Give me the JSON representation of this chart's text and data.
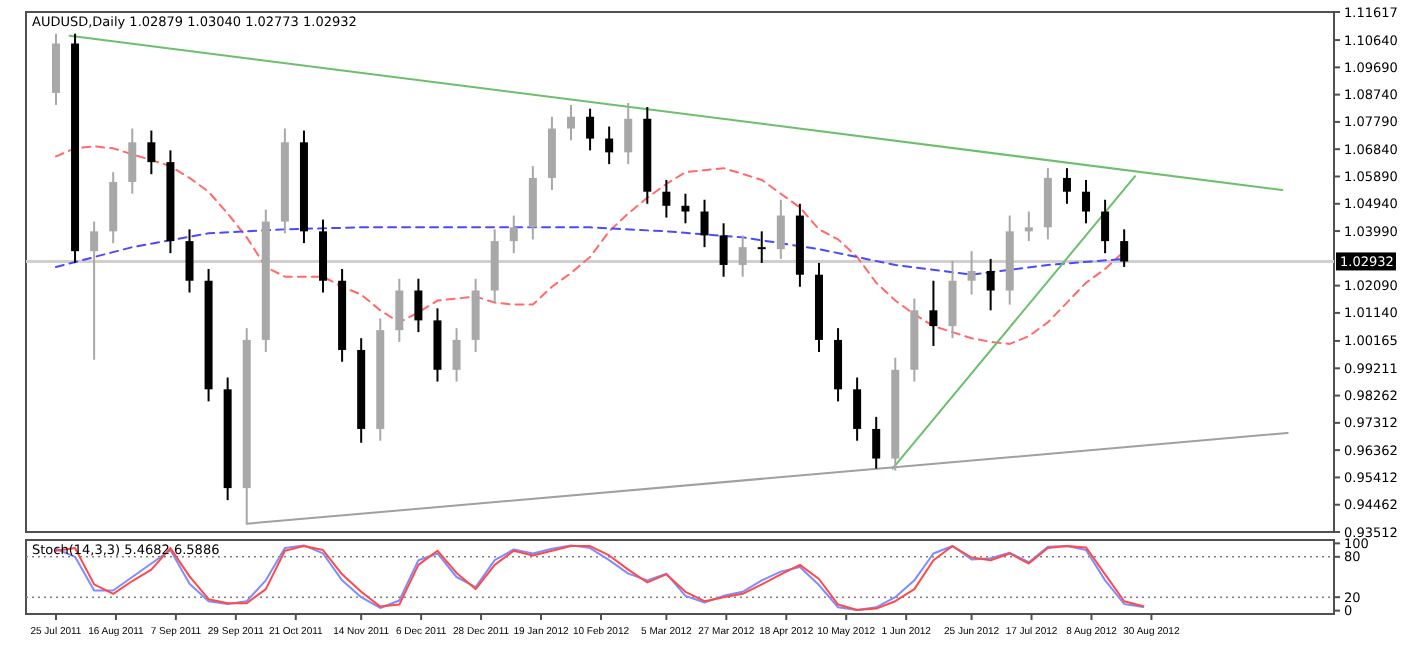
{
  "chart_data": [
    {
      "type": "candlestick",
      "title": "AUDUSD,Daily 1.02879 1.03040 1.02773 1.02932",
      "tick_labels": "y",
      "xlim": [
        "2011-07-14",
        "2012-11-05"
      ],
      "ylim": [
        0.93512,
        1.11617
      ],
      "yticks": [
        0.93512,
        0.94462,
        0.95412,
        0.96362,
        0.97312,
        0.98262,
        0.99211,
        1.00165,
        {
          "value": 1.0114,
          "label": "1.01140"
        },
        {
          "value": 1.0209,
          "label": "1.02090"
        },
        {
          "value": 1.0399,
          "label": "1.03990"
        },
        {
          "value": 1.0494,
          "label": "1.04940"
        },
        {
          "value": 1.0589,
          "label": "1.05890"
        },
        {
          "value": 1.0684,
          "label": "1.06840"
        },
        {
          "value": 1.0779,
          "label": "1.07790"
        },
        {
          "value": 1.0874,
          "label": "1.08740"
        },
        {
          "value": 1.0969,
          "label": "1.09690"
        },
        {
          "value": 1.1064,
          "label": "1.10640"
        },
        1.11617
      ],
      "ref_lines": [
        {
          "axis": "y",
          "value": 1.02932,
          "label": "1.02932",
          "color": "#d0d0d0"
        }
      ],
      "x": [
        "2011-07-25",
        "2011-08-01",
        "2011-08-08",
        "2011-08-15",
        "2011-08-22",
        "2011-08-29",
        "2011-09-05",
        "2011-09-12",
        "2011-09-19",
        "2011-09-26",
        "2011-10-03",
        "2011-10-10",
        "2011-10-17",
        "2011-10-24",
        "2011-10-31",
        "2011-11-07",
        "2011-11-14",
        "2011-11-21",
        "2011-11-28",
        "2011-12-05",
        "2011-12-12",
        "2011-12-19",
        "2011-12-26",
        "2012-01-02",
        "2012-01-09",
        "2012-01-16",
        "2012-01-23",
        "2012-01-30",
        "2012-02-06",
        "2012-02-13",
        "2012-02-20",
        "2012-02-27",
        "2012-03-05",
        "2012-03-12",
        "2012-03-19",
        "2012-03-26",
        "2012-04-02",
        "2012-04-09",
        "2012-04-16",
        "2012-04-23",
        "2012-04-30",
        "2012-05-07",
        "2012-05-14",
        "2012-05-21",
        "2012-05-28",
        "2012-06-04",
        "2012-06-11",
        "2012-06-18",
        "2012-06-25",
        "2012-07-02",
        "2012-07-09",
        "2012-07-16",
        "2012-07-23",
        "2012-07-30",
        "2012-08-06",
        "2012-08-13",
        "2012-08-20"
      ],
      "ohlc": [
        [
          1.088,
          1.1086,
          1.0838,
          1.1052
        ],
        [
          1.1052,
          1.1086,
          1.0288,
          1.0329
        ],
        [
          1.0329,
          1.0432,
          0.9951,
          1.0398
        ],
        [
          1.0398,
          1.0604,
          1.0357,
          1.057
        ],
        [
          1.057,
          1.0756,
          1.0529,
          1.0708
        ],
        [
          1.0708,
          1.0749,
          1.0597,
          1.0639
        ],
        [
          1.0639,
          1.068,
          1.0322,
          1.0364
        ],
        [
          1.0364,
          1.0405,
          1.0185,
          1.0226
        ],
        [
          1.0226,
          1.0267,
          0.9806,
          0.9848
        ],
        [
          0.9848,
          0.9889,
          0.9462,
          0.9504
        ],
        [
          0.9504,
          1.0061,
          0.938,
          1.002
        ],
        [
          1.002,
          1.0474,
          0.9978,
          1.0432
        ],
        [
          1.0432,
          1.0756,
          1.0391,
          1.0708
        ],
        [
          1.0708,
          1.0749,
          1.0357,
          1.0398
        ],
        [
          1.0398,
          1.0439,
          1.0185,
          1.0226
        ],
        [
          1.0226,
          1.0267,
          0.9944,
          0.9985
        ],
        [
          0.9985,
          1.0026,
          0.9662,
          0.971
        ],
        [
          0.971,
          1.0095,
          0.9669,
          1.0054
        ],
        [
          1.0054,
          1.0233,
          1.0013,
          1.0192
        ],
        [
          1.0192,
          1.0233,
          1.0047,
          1.0088
        ],
        [
          1.0088,
          1.013,
          0.9875,
          0.9916
        ],
        [
          0.9916,
          1.0061,
          0.9875,
          1.002
        ],
        [
          1.002,
          1.0233,
          0.9978,
          1.0192
        ],
        [
          1.0192,
          1.0405,
          1.015,
          1.0364
        ],
        [
          1.0364,
          1.0453,
          1.0322,
          1.0412
        ],
        [
          1.0412,
          1.0625,
          1.037,
          1.0584
        ],
        [
          1.0584,
          1.0797,
          1.0542,
          1.0756
        ],
        [
          1.0756,
          1.0838,
          1.0715,
          1.0797
        ],
        [
          1.0797,
          1.0825,
          1.068,
          1.0721
        ],
        [
          1.0721,
          1.0763,
          1.0632,
          1.0673
        ],
        [
          1.0673,
          1.0845,
          1.0632,
          1.079
        ],
        [
          1.079,
          1.0831,
          1.0494,
          1.0536
        ],
        [
          1.0536,
          1.0577,
          1.0446,
          1.0487
        ],
        [
          1.0487,
          1.0529,
          1.0426,
          1.0467
        ],
        [
          1.0467,
          1.0508,
          1.0343,
          1.0384
        ],
        [
          1.0384,
          1.0426,
          1.024,
          1.0281
        ],
        [
          1.0281,
          1.0384,
          1.024,
          1.0343
        ],
        [
          1.0343,
          1.0398,
          1.0288,
          1.0336
        ],
        [
          1.0336,
          1.0508,
          1.0302,
          1.0453
        ],
        [
          1.0453,
          1.0494,
          1.0205,
          1.0247
        ],
        [
          1.0247,
          1.0288,
          0.9978,
          1.002
        ],
        [
          1.002,
          1.0061,
          0.9806,
          0.9848
        ],
        [
          0.9848,
          0.9889,
          0.9669,
          0.971
        ],
        [
          0.971,
          0.9752,
          0.9572,
          0.9607
        ],
        [
          0.9607,
          0.9958,
          0.9565,
          0.9916
        ],
        [
          0.9916,
          1.0164,
          0.9875,
          1.0123
        ],
        [
          1.0123,
          1.0226,
          0.9999,
          1.0068
        ],
        [
          1.0068,
          1.0295,
          1.0026,
          1.0226
        ],
        [
          1.0226,
          1.0329,
          1.0178,
          1.026
        ],
        [
          1.026,
          1.0302,
          1.0123,
          1.0192
        ],
        [
          1.0192,
          1.0453,
          1.0143,
          1.0398
        ],
        [
          1.0398,
          1.0467,
          1.0364,
          1.0412
        ],
        [
          1.0412,
          1.0618,
          1.037,
          1.0584
        ],
        [
          1.0584,
          1.0618,
          1.0494,
          1.0536
        ],
        [
          1.0536,
          1.0577,
          1.0426,
          1.0467
        ],
        [
          1.0467,
          1.0508,
          1.0322,
          1.0364
        ],
        [
          1.0364,
          1.0405,
          1.0274,
          1.0293
        ]
      ],
      "colors": [
        "#a8a8a8",
        "#000000",
        "#a8a8a8",
        "#a8a8a8",
        "#a8a8a8",
        "#000000",
        "#000000",
        "#000000",
        "#000000",
        "#000000",
        "#a8a8a8",
        "#a8a8a8",
        "#a8a8a8",
        "#000000",
        "#000000",
        "#000000",
        "#000000",
        "#a8a8a8",
        "#a8a8a8",
        "#000000",
        "#000000",
        "#a8a8a8",
        "#a8a8a8",
        "#a8a8a8",
        "#a8a8a8",
        "#a8a8a8",
        "#a8a8a8",
        "#a8a8a8",
        "#000000",
        "#000000",
        "#a8a8a8",
        "#000000",
        "#000000",
        "#000000",
        "#000000",
        "#000000",
        "#a8a8a8",
        "#000000",
        "#a8a8a8",
        "#000000",
        "#000000",
        "#000000",
        "#000000",
        "#000000",
        "#a8a8a8",
        "#a8a8a8",
        "#000000",
        "#a8a8a8",
        "#a8a8a8",
        "#000000",
        "#a8a8a8",
        "#a8a8a8",
        "#a8a8a8",
        "#000000",
        "#000000",
        "#000000",
        "#000000"
      ],
      "series": [
        {
          "type": "line",
          "color": "#ff6a6a",
          "line_style": "dashed",
          "x": [
            "2011-07-25",
            "2011-08-01",
            "2011-08-08",
            "2011-08-15",
            "2011-08-22",
            "2011-08-29",
            "2011-09-05",
            "2011-09-12",
            "2011-09-19",
            "2011-09-26",
            "2011-10-03",
            "2011-10-10",
            "2011-10-17",
            "2011-10-24",
            "2011-10-31",
            "2011-11-07",
            "2011-11-14",
            "2011-11-21",
            "2011-11-28",
            "2011-12-05",
            "2011-12-12",
            "2011-12-19",
            "2011-12-26",
            "2012-01-02",
            "2012-01-09",
            "2012-01-16",
            "2012-01-23",
            "2012-01-30",
            "2012-02-06",
            "2012-02-13",
            "2012-02-20",
            "2012-02-27",
            "2012-03-05",
            "2012-03-12",
            "2012-03-19",
            "2012-03-26",
            "2012-04-02",
            "2012-04-09",
            "2012-04-16",
            "2012-04-23",
            "2012-04-30",
            "2012-05-07",
            "2012-05-14",
            "2012-05-21",
            "2012-05-28",
            "2012-06-04",
            "2012-06-11",
            "2012-06-18",
            "2012-06-25",
            "2012-07-02",
            "2012-07-09",
            "2012-07-16",
            "2012-07-23",
            "2012-07-30",
            "2012-08-06",
            "2012-08-13",
            "2012-08-20"
          ],
          "values": [
            1.0659,
            1.0687,
            1.0694,
            1.0687,
            1.0666,
            1.0646,
            1.0625,
            1.0584,
            1.0536,
            1.046,
            1.0377,
            1.0274,
            1.024,
            1.024,
            1.024,
            1.0205,
            1.0178,
            1.0123,
            1.0081,
            1.0116,
            1.0157,
            1.0164,
            1.0171,
            1.015,
            1.0143,
            1.0143,
            1.0205,
            1.0253,
            1.0309,
            1.0398,
            1.046,
            1.0515,
            1.0563,
            1.0604,
            1.0611,
            1.0618,
            1.0598,
            1.0577,
            1.0529,
            1.0481,
            1.0405,
            1.037,
            1.0309,
            1.0219,
            1.0157,
            1.0109,
            1.0068,
            1.0047,
            1.0026,
            1.0013,
            1.0006,
            1.0033,
            1.0081,
            1.015,
            1.0219,
            1.0267,
            1.0329
          ]
        },
        {
          "type": "line",
          "color": "#4a4aff",
          "line_style": "dashed",
          "x": [
            "2011-07-25",
            "2011-08-22",
            "2011-09-19",
            "2011-10-17",
            "2011-11-14",
            "2011-12-12",
            "2012-01-09",
            "2012-02-06",
            "2012-03-05",
            "2012-04-02",
            "2012-04-30",
            "2012-05-28",
            "2012-06-25",
            "2012-07-23",
            "2012-08-20"
          ],
          "values": [
            1.0274,
            1.0343,
            1.0391,
            1.0405,
            1.0412,
            1.0412,
            1.0412,
            1.0412,
            1.0398,
            1.0377,
            1.0336,
            1.0281,
            1.0247,
            1.0281,
            1.0302
          ]
        },
        {
          "type": "line",
          "color": "#6cbf6c",
          "line_style": "solid",
          "x": [
            "2011-07-30",
            "2012-10-17"
          ],
          "values": [
            1.1079,
            1.0542
          ]
        },
        {
          "type": "line",
          "color": "#6cbf6c",
          "line_style": "solid",
          "x": [
            "2012-05-27",
            "2012-08-24"
          ],
          "values": [
            0.9572,
            1.059
          ]
        },
        {
          "type": "line",
          "color": "#a0a0a0",
          "line_style": "solid",
          "x": [
            "2011-10-03",
            "2012-10-19"
          ],
          "values": [
            0.938,
            0.9696
          ]
        }
      ]
    },
    {
      "type": "line",
      "title": "Stoch(14,3,3) 5.4682 6.5886",
      "xlim": [
        "2011-07-14",
        "2012-11-05"
      ],
      "xticks": [
        {
          "value": "2011-07-25",
          "label": "25 Jul 2011"
        },
        {
          "value": "2011-08-16",
          "label": "16 Aug 2011"
        },
        {
          "value": "2011-09-07",
          "label": "7 Sep 2011"
        },
        {
          "value": "2011-09-29",
          "label": "29 Sep 2011"
        },
        {
          "value": "2011-10-21",
          "label": "21 Oct 2011"
        },
        {
          "value": "2011-11-14",
          "label": "14 Nov 2011"
        },
        {
          "value": "2011-12-06",
          "label": "6 Dec 2011"
        },
        {
          "value": "2011-12-28",
          "label": "28 Dec 2011"
        },
        {
          "value": "2012-01-19",
          "label": "19 Jan 2012"
        },
        {
          "value": "2012-02-10",
          "label": "10 Feb 2012"
        },
        {
          "value": "2012-03-05",
          "label": "5 Mar 2012"
        },
        {
          "value": "2012-03-27",
          "label": "27 Mar 2012"
        },
        {
          "value": "2012-04-18",
          "label": "18 Apr 2012"
        },
        {
          "value": "2012-05-10",
          "label": "10 May 2012"
        },
        {
          "value": "2012-06-01",
          "label": "1 Jun 2012"
        },
        {
          "value": "2012-06-25",
          "label": "25 Jun 2012"
        },
        {
          "value": "2012-07-17",
          "label": "17 Jul 2012"
        },
        {
          "value": "2012-08-08",
          "label": "8 Aug 2012"
        },
        {
          "value": "2012-08-30",
          "label": "30 Aug 2012"
        }
      ],
      "ylim": [
        -5,
        105
      ],
      "yticks": [
        0,
        20,
        80,
        100
      ],
      "ref_lines": [
        {
          "axis": "y",
          "value": 20,
          "color": "#808080",
          "line_style": "dotted"
        },
        {
          "axis": "y",
          "value": 80,
          "color": "#808080",
          "line_style": "dotted"
        }
      ],
      "x": [
        "2011-07-25",
        "2011-08-01",
        "2011-08-08",
        "2011-08-15",
        "2011-08-22",
        "2011-08-29",
        "2011-09-05",
        "2011-09-12",
        "2011-09-19",
        "2011-09-26",
        "2011-10-03",
        "2011-10-10",
        "2011-10-17",
        "2011-10-24",
        "2011-10-31",
        "2011-11-07",
        "2011-11-14",
        "2011-11-21",
        "2011-11-28",
        "2011-12-05",
        "2011-12-12",
        "2011-12-19",
        "2011-12-26",
        "2012-01-02",
        "2012-01-09",
        "2012-01-16",
        "2012-01-23",
        "2012-01-30",
        "2012-02-06",
        "2012-02-13",
        "2012-02-20",
        "2012-02-27",
        "2012-03-05",
        "2012-03-12",
        "2012-03-19",
        "2012-03-26",
        "2012-04-02",
        "2012-04-09",
        "2012-04-16",
        "2012-04-23",
        "2012-04-30",
        "2012-05-07",
        "2012-05-14",
        "2012-05-21",
        "2012-05-28",
        "2012-06-04",
        "2012-06-11",
        "2012-06-18",
        "2012-06-25",
        "2012-07-02",
        "2012-07-09",
        "2012-07-16",
        "2012-07-23",
        "2012-07-30",
        "2012-08-06",
        "2012-08-13",
        "2012-08-20",
        "2012-08-27"
      ],
      "series": [
        {
          "color": "#7f8cff",
          "values": [
            92,
            80,
            30,
            30,
            50,
            70,
            90,
            40,
            14,
            10,
            14,
            45,
            93,
            97,
            85,
            45,
            20,
            4,
            15,
            75,
            85,
            50,
            35,
            75,
            91,
            85,
            92,
            97,
            93,
            75,
            55,
            45,
            55,
            22,
            12,
            22,
            28,
            45,
            58,
            65,
            38,
            5,
            1,
            5,
            20,
            45,
            85,
            96,
            76,
            78,
            86,
            72,
            95,
            96,
            90,
            45,
            10,
            5.4682
          ]
        },
        {
          "color": "#ff4a4a",
          "values": [
            89,
            93,
            39,
            25,
            44,
            61,
            93,
            51,
            17,
            11,
            11,
            32,
            89,
            96,
            90,
            54,
            28,
            6,
            9,
            68,
            89,
            56,
            32,
            68,
            89,
            82,
            89,
            96,
            96,
            82,
            61,
            42,
            54,
            28,
            14,
            20,
            25,
            39,
            54,
            68,
            47,
            9,
            1,
            3,
            14,
            32,
            75,
            96,
            79,
            75,
            85,
            70,
            93,
            96,
            94,
            54,
            14,
            6.5886
          ]
        }
      ]
    }
  ]
}
